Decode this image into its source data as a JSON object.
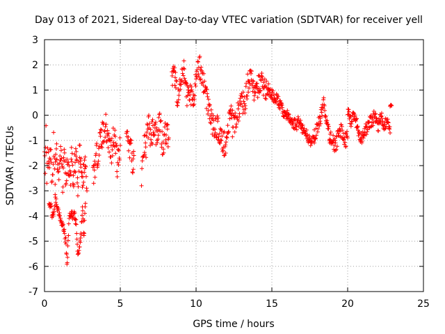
{
  "chart_data": {
    "type": "scatter",
    "title": "Day 013 of 2021, Sidereal Day-to-day VTEC variation (SDTVAR) for receiver yell",
    "xlabel": "GPS time / hours",
    "ylabel": "SDTVAR / TECUs",
    "xlim": [
      0,
      25
    ],
    "ylim": [
      -7,
      3
    ],
    "xticks": [
      0,
      5,
      10,
      15,
      20,
      25
    ],
    "yticks": [
      -7,
      -6,
      -5,
      -4,
      -3,
      -2,
      -1,
      0,
      1,
      2,
      3
    ],
    "grid": true,
    "marker": "+",
    "series_color": "#ff0000",
    "segments": [
      {
        "t": [
          0.0,
          0.05,
          0.1,
          0.15,
          0.2,
          0.3,
          0.4,
          0.5,
          0.6,
          0.7,
          0.8,
          0.9,
          1.0,
          1.1,
          1.2,
          1.3,
          1.4,
          1.5,
          1.6,
          1.7,
          1.8,
          1.9,
          2.0,
          2.1,
          2.2,
          2.3,
          2.4,
          2.5,
          2.6,
          2.7,
          2.8
        ],
        "y": [
          -1.0,
          -2.6,
          -0.8,
          -2.8,
          -1.6,
          -2.2,
          -1.4,
          -3.0,
          -1.0,
          -2.4,
          -1.2,
          -2.6,
          -2.0,
          -1.4,
          -2.8,
          -1.2,
          -3.0,
          -1.8,
          -2.4,
          -2.6,
          -1.4,
          -2.8,
          -2.0,
          -1.6,
          -3.2,
          -1.4,
          -2.0,
          -2.6,
          -2.2,
          -1.6,
          -3.0
        ],
        "spread": 0.9
      },
      {
        "t": [
          0.3,
          0.4,
          0.5,
          0.6,
          0.7,
          1.3,
          1.4,
          1.5,
          1.6,
          1.7,
          2.0,
          2.1,
          2.2,
          2.3,
          2.4,
          2.5,
          2.6,
          2.7
        ],
        "y": [
          -3.4,
          -3.6,
          -3.9,
          -4.1,
          -3.3,
          -4.6,
          -5.0,
          -6.0,
          -4.3,
          -3.9,
          -4.0,
          -4.4,
          -5.6,
          -5.2,
          -4.8,
          -3.7,
          -4.8,
          -3.5
        ],
        "spread": 0.35
      },
      {
        "t": [
          3.2,
          3.4,
          3.6,
          3.8,
          4.0,
          4.2,
          4.4,
          4.6,
          4.8,
          5.0
        ],
        "y": [
          -2.4,
          -1.8,
          -1.2,
          -0.8,
          -0.4,
          -0.9,
          -1.5,
          -0.6,
          -2.0,
          -1.2
        ],
        "spread": 1.1
      },
      {
        "t": [
          5.4,
          5.5,
          5.6,
          5.7,
          5.8,
          5.9
        ],
        "y": [
          -0.4,
          -0.8,
          -1.4,
          -1.0,
          -2.0,
          -1.6
        ],
        "spread": 0.8
      },
      {
        "t": [
          6.4,
          6.5,
          6.6,
          6.7,
          6.8,
          6.9,
          7.0,
          7.2,
          7.4,
          7.6,
          7.8,
          8.0,
          8.2
        ],
        "y": [
          -2.6,
          -1.6,
          -1.2,
          -1.4,
          -0.6,
          -0.2,
          -1.0,
          -0.4,
          -0.8,
          -0.1,
          -1.2,
          -0.6,
          -0.9
        ],
        "spread": 1.0
      },
      {
        "t": [
          8.4,
          8.6,
          8.8,
          9.0,
          9.2,
          9.4,
          9.6,
          9.8
        ],
        "y": [
          1.4,
          1.6,
          0.6,
          1.2,
          1.8,
          0.8,
          1.0,
          0.4
        ],
        "spread": 0.9
      },
      {
        "t": [
          9.8,
          10.0,
          10.2,
          10.4,
          10.6,
          10.8,
          11.0,
          11.2,
          11.4,
          11.6,
          11.8,
          12.0,
          12.2,
          12.4
        ],
        "y": [
          0.8,
          1.2,
          2.0,
          1.6,
          1.0,
          0.4,
          -0.2,
          -0.6,
          -0.4,
          -0.8,
          -1.2,
          -1.0,
          -0.2,
          0.2
        ],
        "spread": 1.0
      },
      {
        "t": [
          12.4,
          12.6,
          12.8,
          13.0,
          13.2,
          13.4,
          13.6,
          13.8,
          14.0,
          14.2,
          14.4,
          14.6,
          14.8
        ],
        "y": [
          -0.6,
          -0.2,
          0.2,
          0.6,
          0.4,
          1.2,
          1.8,
          1.0,
          0.8,
          1.4,
          1.2,
          1.0,
          0.8
        ],
        "spread": 0.9
      },
      {
        "t": [
          14.8,
          15.0,
          15.2,
          15.4,
          15.6,
          15.8,
          16.0,
          16.2,
          16.4,
          16.6,
          16.8,
          17.0,
          17.2,
          17.4,
          17.6,
          17.8
        ],
        "y": [
          1.0,
          0.8,
          0.7,
          0.6,
          0.3,
          0.1,
          0.0,
          -0.2,
          -0.3,
          -0.4,
          -0.2,
          -0.5,
          -0.7,
          -0.9,
          -1.0,
          -1.1
        ],
        "spread": 0.45
      },
      {
        "t": [
          17.8,
          18.0,
          18.2,
          18.4,
          18.6,
          18.8,
          19.0,
          19.2,
          19.4,
          19.6,
          19.8,
          20.0
        ],
        "y": [
          -0.8,
          -0.5,
          -0.2,
          0.6,
          -0.4,
          -0.8,
          -1.0,
          -1.2,
          -0.8,
          -0.6,
          -1.0,
          -0.9
        ],
        "spread": 0.6
      },
      {
        "t": [
          20.0,
          20.2,
          20.4,
          20.6,
          20.8,
          21.0,
          21.2,
          21.4,
          21.6,
          21.8,
          22.0,
          22.2,
          22.4,
          22.6,
          22.8
        ],
        "y": [
          0.1,
          -0.2,
          0.0,
          -0.4,
          -1.0,
          -0.9,
          -0.6,
          -0.3,
          -0.2,
          0.0,
          -0.5,
          -0.1,
          -0.4,
          -0.2,
          -0.7
        ],
        "spread": 0.55
      },
      {
        "t": [
          22.8,
          22.85,
          22.9
        ],
        "y": [
          0.35,
          0.4,
          0.38
        ],
        "spread": 0.05
      }
    ]
  }
}
